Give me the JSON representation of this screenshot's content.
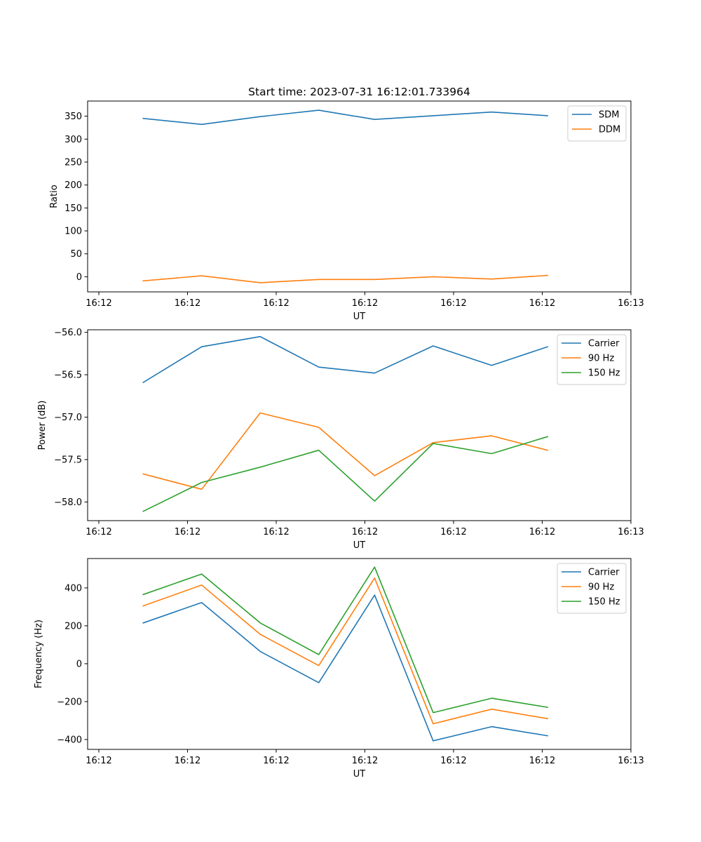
{
  "chart_data": [
    {
      "type": "line",
      "title": "Start time: 2023-07-31 16:12:01.733964",
      "xlabel": "UT",
      "ylabel": "Ratio",
      "x_ticks": [
        "16:12",
        "16:12",
        "16:12",
        "16:12",
        "16:12",
        "16:12",
        "16:13"
      ],
      "y_ticks": [
        "0",
        "50",
        "100",
        "150",
        "200",
        "250",
        "300",
        "350"
      ],
      "xlim": [
        0,
        6
      ],
      "ylim": [
        -33,
        383
      ],
      "x": [
        0.5,
        1.16,
        1.82,
        2.48,
        3.11,
        3.77,
        4.43,
        5.06
      ],
      "legend_position": "top-right",
      "series": [
        {
          "name": "SDM",
          "color": "#1f77b4",
          "values": [
            345,
            332,
            349,
            363,
            343,
            351,
            359,
            351
          ]
        },
        {
          "name": "DDM",
          "color": "#ff7f0e",
          "values": [
            -9,
            2,
            -13,
            -6,
            -6,
            0,
            -5,
            3
          ]
        }
      ]
    },
    {
      "type": "line",
      "xlabel": "UT",
      "ylabel": "Power (dB)",
      "x_ticks": [
        "16:12",
        "16:12",
        "16:12",
        "16:12",
        "16:12",
        "16:12",
        "16:13"
      ],
      "y_ticks": [
        "−58.0",
        "−57.5",
        "−57.0",
        "−56.5",
        "−56.0"
      ],
      "xlim": [
        0,
        6
      ],
      "ylim": [
        -58.22,
        -55.97
      ],
      "x": [
        0.5,
        1.16,
        1.82,
        2.48,
        3.11,
        3.77,
        4.43,
        5.06
      ],
      "legend_position": "top-right",
      "series": [
        {
          "name": "Carrier",
          "color": "#1f77b4",
          "values": [
            -56.59,
            -56.17,
            -56.05,
            -56.41,
            -56.48,
            -56.16,
            -56.39,
            -56.17
          ]
        },
        {
          "name": "90 Hz",
          "color": "#ff7f0e",
          "values": [
            -57.67,
            -57.85,
            -56.95,
            -57.12,
            -57.69,
            -57.3,
            -57.22,
            -57.39
          ]
        },
        {
          "name": "150 Hz",
          "color": "#2ca02c",
          "values": [
            -58.11,
            -57.77,
            -57.59,
            -57.39,
            -57.99,
            -57.31,
            -57.43,
            -57.23
          ]
        }
      ]
    },
    {
      "type": "line",
      "xlabel": "UT",
      "ylabel": "Frequency (Hz)",
      "x_ticks": [
        "16:12",
        "16:12",
        "16:12",
        "16:12",
        "16:12",
        "16:12",
        "16:13"
      ],
      "y_ticks": [
        "−400",
        "−200",
        "0",
        "200",
        "400"
      ],
      "xlim": [
        0,
        6
      ],
      "ylim": [
        -452,
        555
      ],
      "x": [
        0.5,
        1.16,
        1.82,
        2.48,
        3.11,
        3.77,
        4.43,
        5.06
      ],
      "legend_position": "top-right",
      "series": [
        {
          "name": "Carrier",
          "color": "#1f77b4",
          "values": [
            215,
            323,
            65,
            -100,
            362,
            -407,
            -332,
            -380
          ]
        },
        {
          "name": "90 Hz",
          "color": "#ff7f0e",
          "values": [
            305,
            415,
            155,
            -10,
            452,
            -317,
            -240,
            -290
          ]
        },
        {
          "name": "150 Hz",
          "color": "#2ca02c",
          "values": [
            365,
            473,
            215,
            48,
            510,
            -258,
            -182,
            -230
          ]
        }
      ]
    }
  ]
}
